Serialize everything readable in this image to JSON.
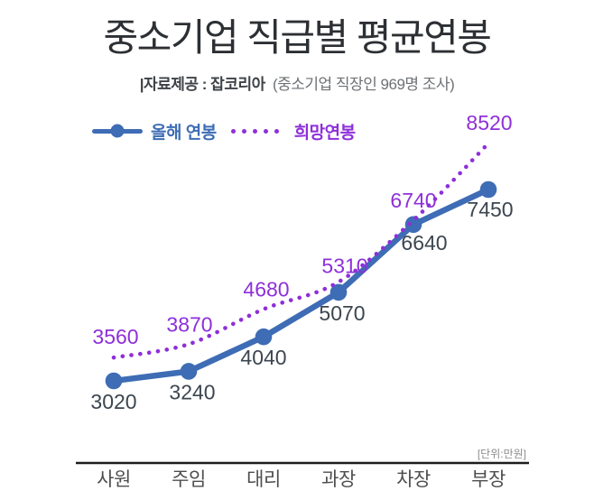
{
  "header": {
    "title": "중소기업 직급별 평균연봉",
    "source_prefix": "|자료제공 : 잡코리아",
    "source_note": "(중소기업 직장인 969명 조사)"
  },
  "legend": {
    "current_salary_label": "올해 연봉",
    "desired_salary_label": "희망연봉"
  },
  "unit_label": "[단위:만원]",
  "colors": {
    "current_salary": "#3e6cb5",
    "desired_salary": "#8e2fd9",
    "value_label_dark": "#3c4650",
    "axis": "#1c1c1c",
    "category_label": "#4e4e4e",
    "unit": "#8c8c8c"
  },
  "chart_data": {
    "type": "line",
    "title": "중소기업 직급별 평균연봉",
    "unit": "만원",
    "categories": [
      "사원",
      "주임",
      "대리",
      "과장",
      "차장",
      "부장"
    ],
    "series": [
      {
        "name": "올해 연봉",
        "style": "solid",
        "color": "#3e6cb5",
        "values": [
          3020,
          3240,
          4040,
          5070,
          6640,
          7450
        ]
      },
      {
        "name": "희망연봉",
        "style": "dotted",
        "color": "#8e2fd9",
        "values": [
          3560,
          3870,
          4680,
          5310,
          6740,
          8520
        ]
      }
    ],
    "ylim": [
      2800,
      8800
    ],
    "grid": false,
    "legend_position": "top-left",
    "value_labels": "all-points"
  }
}
